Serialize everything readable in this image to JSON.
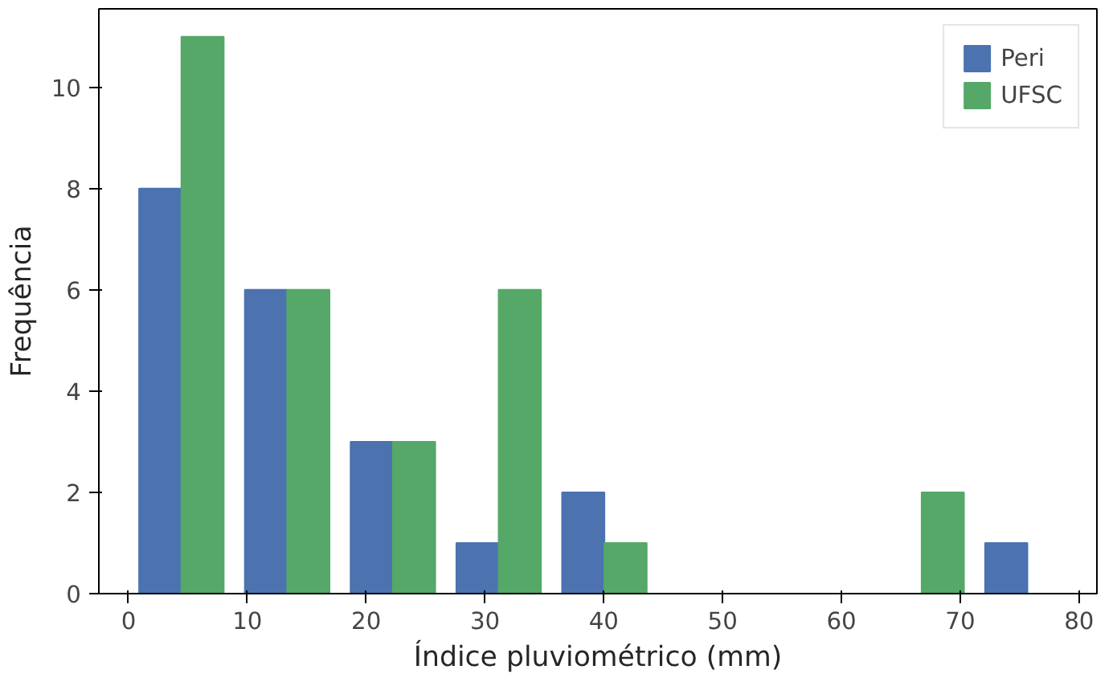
{
  "chart_data": {
    "type": "histogram",
    "xlabel": "Índice pluviométrico (mm)",
    "ylabel": "Frequência",
    "bins": [
      0,
      8.9,
      17.8,
      26.7,
      35.6,
      44.5,
      53.4,
      62.3,
      71.2,
      80.1
    ],
    "series": [
      {
        "name": "Peri",
        "color": "#4c72b0",
        "values": [
          8,
          6,
          3,
          1,
          2,
          0,
          0,
          0,
          1
        ]
      },
      {
        "name": "UFSC",
        "color": "#55a868",
        "values": [
          11,
          6,
          3,
          6,
          1,
          0,
          0,
          2,
          0
        ]
      }
    ],
    "xlim": [
      -2.5,
      81.5
    ],
    "ylim": [
      0,
      11.55
    ],
    "xticks": [
      0,
      10,
      20,
      30,
      40,
      50,
      60,
      70,
      80
    ],
    "yticks": [
      0,
      2,
      4,
      6,
      8,
      10
    ],
    "grid": false,
    "legend": "top right"
  }
}
